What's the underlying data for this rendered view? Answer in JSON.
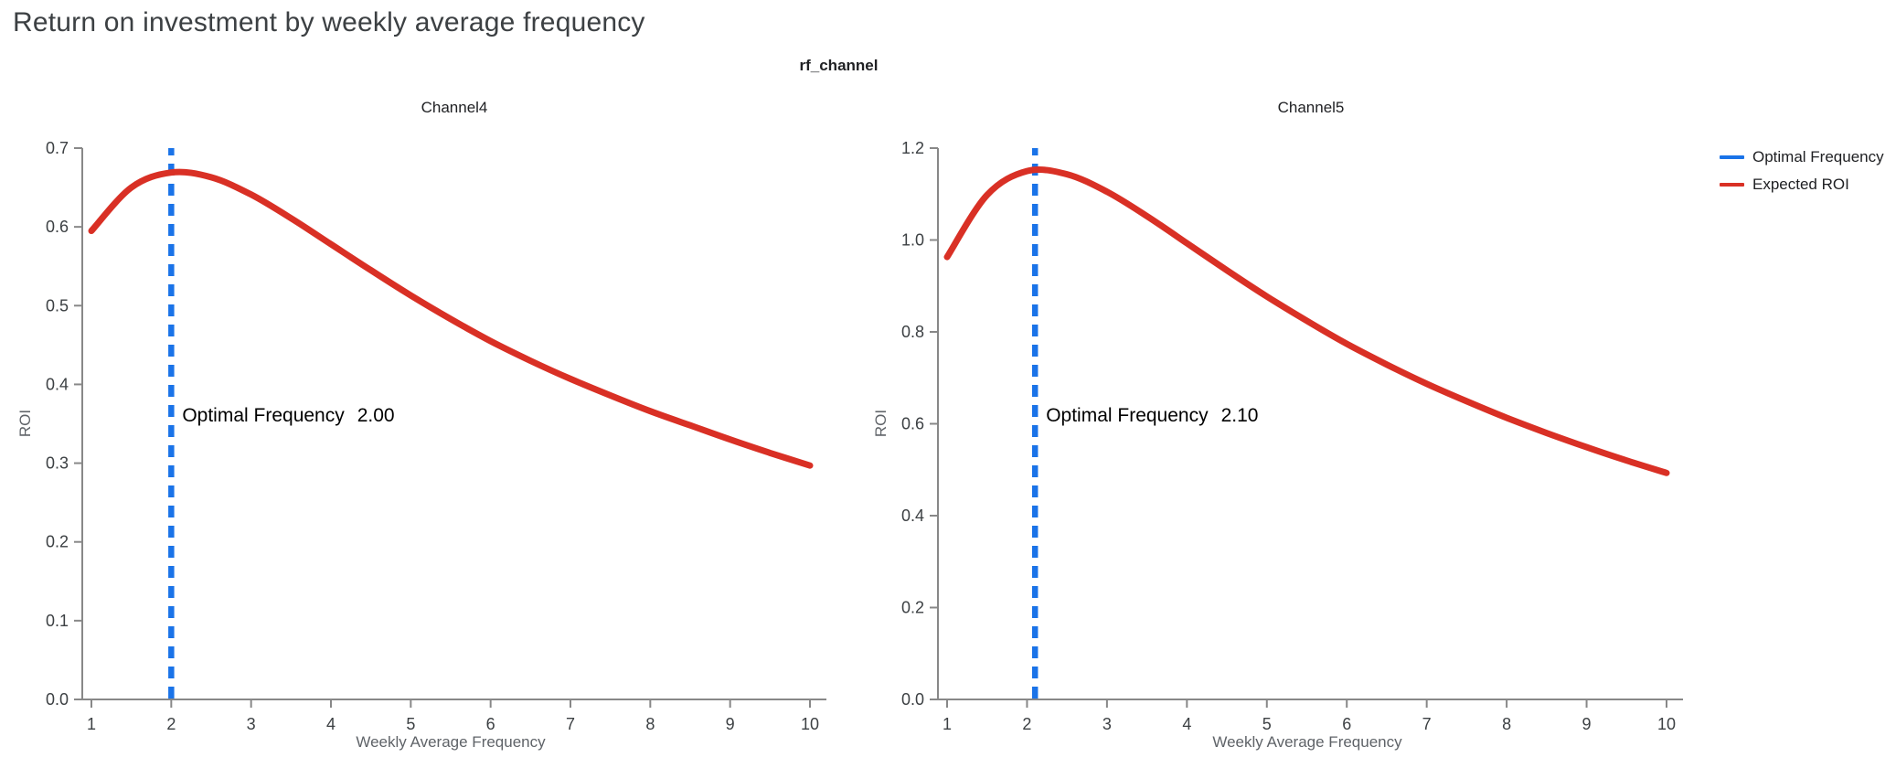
{
  "title": "Return on investment by weekly average frequency",
  "subtitle": "rf_channel",
  "legend": {
    "items": [
      {
        "label": "Optimal Frequency",
        "color": "#1a73e8"
      },
      {
        "label": "Expected ROI",
        "color": "#d93025"
      }
    ]
  },
  "colors": {
    "roi_line": "#d93025",
    "optimal_line": "#1a73e8",
    "axis": "#888888",
    "tick_label": "#3c4043",
    "axis_title": "#5f6368",
    "title_text": "#3c4043"
  },
  "chart_data": {
    "type": "line",
    "xlabel": "Weekly Average Frequency",
    "ylabel": "ROI",
    "facet_title": "rf_channel",
    "legend_position": "top-right",
    "grid": false,
    "panels": [
      {
        "title": "Channel4",
        "optimal_frequency": 2.0,
        "annotation": {
          "label": "Optimal Frequency",
          "value": "2.00"
        },
        "annotation_y": 0.36,
        "xlim": [
          1,
          10
        ],
        "ylim": [
          0,
          0.7
        ],
        "xticks": [
          1,
          2,
          3,
          4,
          5,
          6,
          7,
          8,
          9,
          10
        ],
        "yticks": [
          0,
          0.1,
          0.2,
          0.3,
          0.4,
          0.5,
          0.6,
          0.7
        ],
        "x": [
          1,
          1.5,
          2,
          2.5,
          3,
          3.5,
          4,
          4.5,
          5,
          5.5,
          6,
          6.5,
          7,
          7.5,
          8,
          8.5,
          9,
          9.5,
          10
        ],
        "roi": [
          0.595,
          0.65,
          0.669,
          0.663,
          0.641,
          0.611,
          0.578,
          0.545,
          0.513,
          0.483,
          0.455,
          0.43,
          0.407,
          0.386,
          0.366,
          0.348,
          0.33,
          0.313,
          0.297
        ]
      },
      {
        "title": "Channel5",
        "optimal_frequency": 2.1,
        "annotation": {
          "label": "Optimal Frequency",
          "value": "2.10"
        },
        "annotation_y": 0.617,
        "xlim": [
          1,
          10
        ],
        "ylim": [
          0,
          1.2
        ],
        "xticks": [
          1,
          2,
          3,
          4,
          5,
          6,
          7,
          8,
          9,
          10
        ],
        "yticks": [
          0,
          0.2,
          0.4,
          0.6,
          0.8,
          1.0,
          1.2
        ],
        "x": [
          1,
          1.5,
          2,
          2.5,
          3,
          3.5,
          4,
          4.5,
          5,
          5.5,
          6,
          6.5,
          7,
          7.5,
          8,
          8.5,
          9,
          9.5,
          10
        ],
        "roi": [
          0.963,
          1.098,
          1.15,
          1.143,
          1.105,
          1.052,
          0.993,
          0.934,
          0.877,
          0.824,
          0.774,
          0.729,
          0.687,
          0.649,
          0.613,
          0.58,
          0.549,
          0.52,
          0.493
        ]
      }
    ]
  }
}
